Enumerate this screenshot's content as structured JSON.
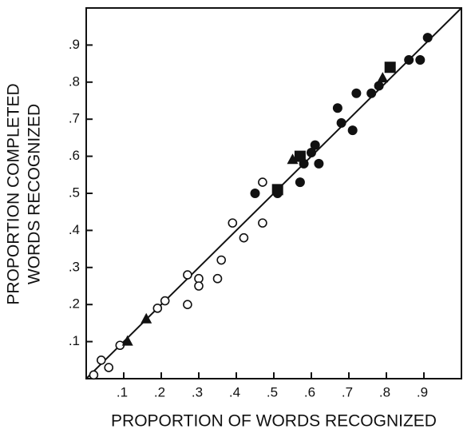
{
  "chart_data": {
    "type": "scatter",
    "xlabel": "PROPORTION OF WORDS RECOGNIZED",
    "ylabel": [
      "PROPORTION COMPLETED",
      "WORDS RECOGNIZED"
    ],
    "xlim": [
      0,
      1
    ],
    "ylim": [
      0,
      1
    ],
    "xticks": [
      {
        "value": 0.1,
        "label": ".1"
      },
      {
        "value": 0.2,
        "label": ".2"
      },
      {
        "value": 0.3,
        "label": ".3"
      },
      {
        "value": 0.4,
        "label": ".4"
      },
      {
        "value": 0.5,
        "label": ".5"
      },
      {
        "value": 0.6,
        "label": ".6"
      },
      {
        "value": 0.7,
        "label": ".7"
      },
      {
        "value": 0.8,
        "label": ".8"
      },
      {
        "value": 0.9,
        "label": ".9"
      }
    ],
    "yticks": [
      {
        "value": 0.1,
        "label": ".1"
      },
      {
        "value": 0.2,
        "label": ".2"
      },
      {
        "value": 0.3,
        "label": ".3"
      },
      {
        "value": 0.4,
        "label": ".4"
      },
      {
        "value": 0.5,
        "label": ".5"
      },
      {
        "value": 0.6,
        "label": ".6"
      },
      {
        "value": 0.7,
        "label": ".7"
      },
      {
        "value": 0.8,
        "label": ".8"
      },
      {
        "value": 0.9,
        "label": ".9"
      }
    ],
    "diagonal": true,
    "series": [
      {
        "marker": "circle-open",
        "color": "#111111",
        "x": [
          0.02,
          0.04,
          0.06,
          0.09,
          0.19,
          0.21,
          0.27,
          0.27,
          0.3,
          0.3,
          0.35,
          0.36,
          0.39,
          0.42,
          0.47,
          0.47
        ],
        "values": [
          0.01,
          0.05,
          0.03,
          0.09,
          0.19,
          0.21,
          0.28,
          0.2,
          0.27,
          0.25,
          0.27,
          0.32,
          0.42,
          0.38,
          0.42,
          0.53
        ]
      },
      {
        "marker": "circle",
        "color": "#111111",
        "x": [
          0.51,
          0.45,
          0.57,
          0.58,
          0.6,
          0.61,
          0.62,
          0.67,
          0.68,
          0.71,
          0.72,
          0.76,
          0.78,
          0.86,
          0.89,
          0.91
        ],
        "values": [
          0.5,
          0.5,
          0.53,
          0.58,
          0.61,
          0.63,
          0.58,
          0.73,
          0.69,
          0.67,
          0.77,
          0.77,
          0.79,
          0.86,
          0.86,
          0.92
        ]
      },
      {
        "marker": "triangle",
        "color": "#111111",
        "x": [
          0.11,
          0.16,
          0.55,
          0.79
        ],
        "values": [
          0.1,
          0.16,
          0.59,
          0.81
        ]
      },
      {
        "marker": "square",
        "color": "#111111",
        "x": [
          0.51,
          0.57,
          0.81
        ],
        "values": [
          0.51,
          0.6,
          0.84
        ]
      }
    ]
  }
}
